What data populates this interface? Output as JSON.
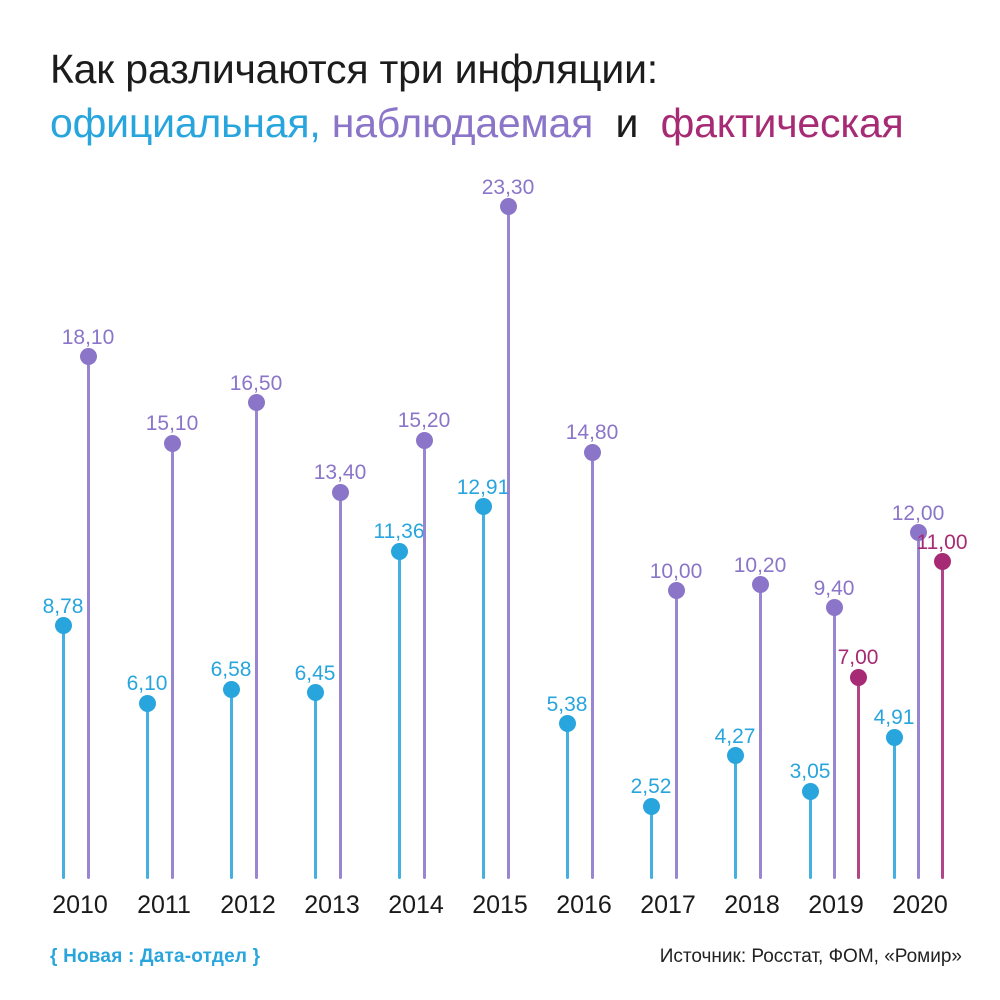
{
  "title": {
    "line1": "Как различаются три инфляции:",
    "official_word": "официальная,",
    "observed_word": "наблюдаемая",
    "conjunction": " и ",
    "actual_word": "фактическая"
  },
  "colors": {
    "official": "#29a5dd",
    "observed": "#8b75c9",
    "actual": "#a62b74",
    "title_text": "#1c1c1c",
    "axis_text": "#1a1a1a"
  },
  "chart_data": {
    "type": "bar",
    "style": "lollipop",
    "title": "Как различаются три инфляции: официальная, наблюдаемая и фактическая",
    "xlabel": "",
    "ylabel": "",
    "ylim": [
      0,
      25
    ],
    "grid": false,
    "legend_position": "in-title",
    "value_label_decimal_separator": ",",
    "categories": [
      "2010",
      "2011",
      "2012",
      "2013",
      "2014",
      "2015",
      "2016",
      "2017",
      "2018",
      "2019",
      "2020"
    ],
    "series": [
      {
        "name": "официальная",
        "color_key": "official",
        "values": [
          8.78,
          6.1,
          6.58,
          6.45,
          11.36,
          12.91,
          5.38,
          2.52,
          4.27,
          3.05,
          4.91
        ],
        "labels": [
          "8,78",
          "6,10",
          "6,58",
          "6,45",
          "11,36",
          "12,91",
          "5,38",
          "2,52",
          "4,27",
          "3,05",
          "4,91"
        ]
      },
      {
        "name": "наблюдаемая",
        "color_key": "observed",
        "values": [
          18.1,
          15.1,
          16.5,
          13.4,
          15.2,
          23.3,
          14.8,
          10.0,
          10.2,
          9.4,
          12.0
        ],
        "labels": [
          "18,10",
          "15,10",
          "16,50",
          "13,40",
          "15,20",
          "23,30",
          "14,80",
          "10,00",
          "10,20",
          "9,40",
          "12,00"
        ]
      },
      {
        "name": "фактическая",
        "color_key": "actual",
        "values": [
          null,
          null,
          null,
          null,
          null,
          null,
          null,
          null,
          null,
          7.0,
          11.0
        ],
        "labels": [
          null,
          null,
          null,
          null,
          null,
          null,
          null,
          null,
          null,
          "7,00",
          "11,00"
        ]
      }
    ]
  },
  "footer": {
    "brand": "{ Новая : Дата-отдел }",
    "source": "Источник: Росстат, ФОМ, «Ромир»"
  }
}
